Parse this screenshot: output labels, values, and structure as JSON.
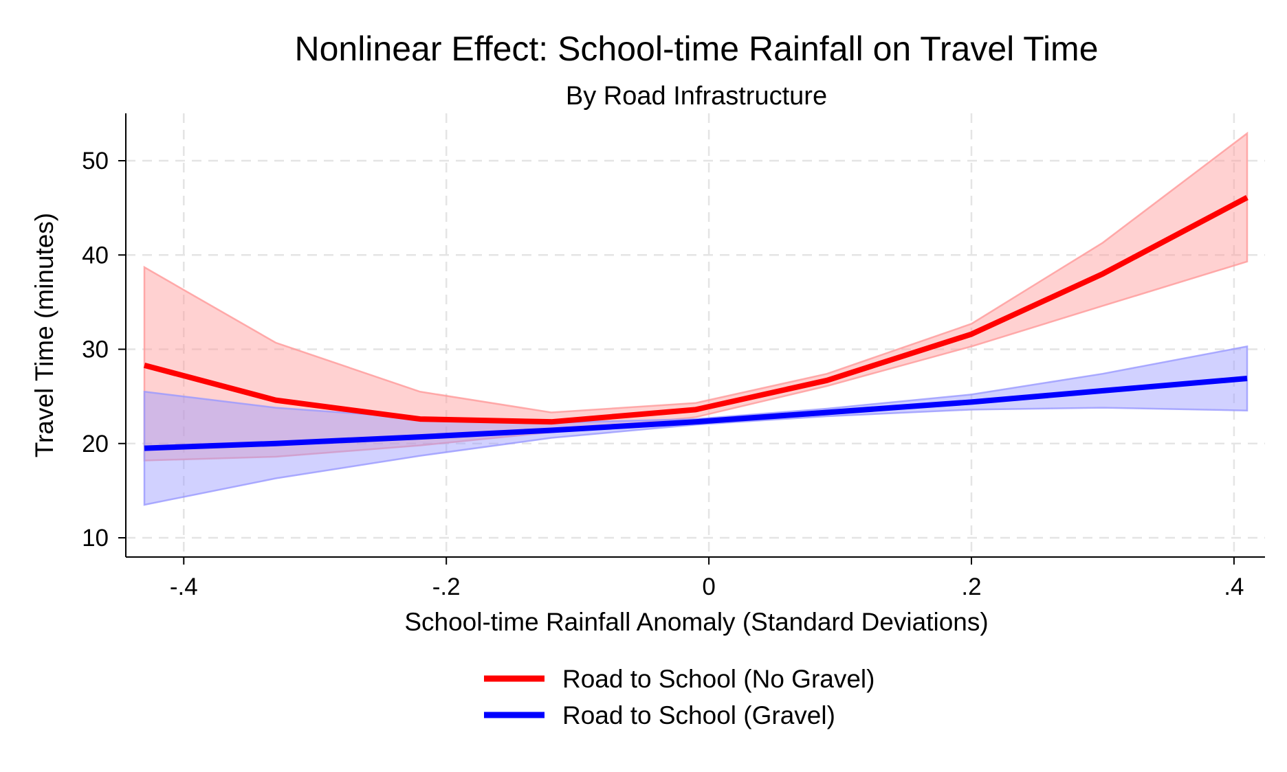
{
  "chart_data": {
    "type": "line",
    "title": "Nonlinear Effect: School-time Rainfall on Travel Time",
    "subtitle": "By Road Infrastructure",
    "xlabel": "School-time Rainfall Anomaly (Standard Deviations)",
    "ylabel": "Travel Time (minutes)",
    "xlim": [
      -0.43,
      0.41
    ],
    "ylim": [
      8.5,
      55
    ],
    "xticks": [
      -0.4,
      -0.2,
      0,
      0.2,
      0.4
    ],
    "xtick_labels": [
      "-.4",
      "-.2",
      "0",
      ".2",
      ".4"
    ],
    "yticks": [
      10,
      20,
      30,
      40,
      50
    ],
    "ytick_labels": [
      "10",
      "20",
      "30",
      "40",
      "50"
    ],
    "grid": true,
    "legend_position": "bottom-center",
    "series": [
      {
        "name": "Road to School (No Gravel)",
        "color": "#ff0000",
        "band_color": "#ff9999",
        "x": [
          -0.43,
          -0.33,
          -0.22,
          -0.12,
          -0.01,
          0.09,
          0.2,
          0.3,
          0.41
        ],
        "y": [
          28.3,
          24.6,
          22.6,
          22.3,
          23.6,
          26.7,
          31.6,
          38.0,
          46.1
        ],
        "lower": [
          18.2,
          18.6,
          19.8,
          21.2,
          22.8,
          26.1,
          30.3,
          34.6,
          39.3
        ],
        "upper": [
          38.7,
          30.7,
          25.5,
          23.3,
          24.3,
          27.4,
          32.7,
          41.3,
          52.9
        ]
      },
      {
        "name": "Road to School (Gravel)",
        "color": "#0000ff",
        "band_color": "#9999ff",
        "x": [
          -0.43,
          -0.33,
          -0.22,
          -0.12,
          -0.01,
          0.09,
          0.2,
          0.3,
          0.41
        ],
        "y": [
          19.5,
          20.0,
          20.7,
          21.4,
          22.3,
          23.3,
          24.4,
          25.6,
          26.9
        ],
        "lower": [
          13.5,
          16.3,
          18.7,
          20.6,
          22.0,
          22.9,
          23.6,
          23.8,
          23.5
        ],
        "upper": [
          25.5,
          23.8,
          22.7,
          22.2,
          22.6,
          23.7,
          25.2,
          27.4,
          30.3
        ]
      }
    ]
  }
}
